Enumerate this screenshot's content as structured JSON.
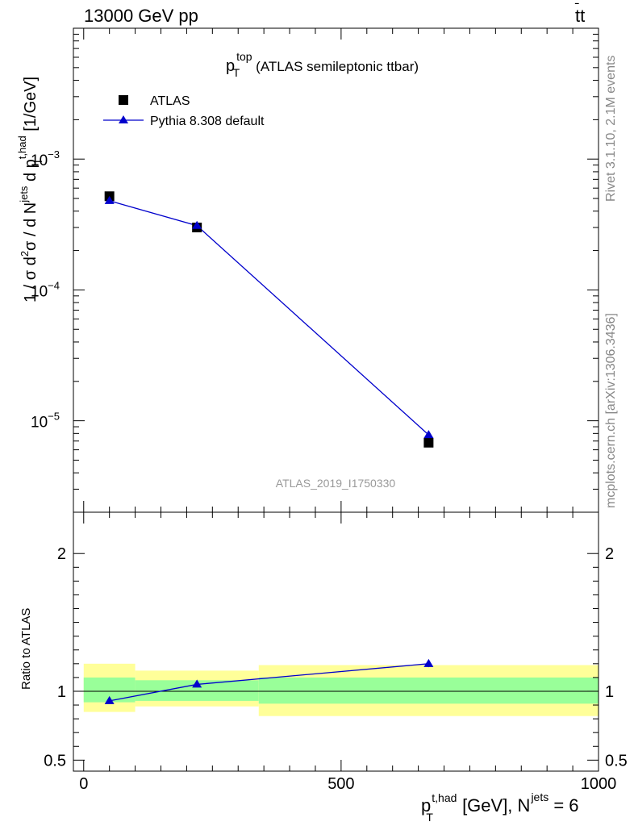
{
  "header": {
    "collision": "13000 GeV pp",
    "process_main": "tt",
    "process_bar": "̄"
  },
  "side_labels": {
    "rivet": "Rivet 3.1.10,  2.1M events",
    "mcplots": "mcplots.cern.ch [arXiv:1306.3436]"
  },
  "watermark": "ATLAS_2019_I1750330",
  "colors": {
    "atlas": "#000000",
    "pythia": "#0000cc",
    "band_stat": "#99ff99",
    "band_total": "#ffff99"
  },
  "chart_data": [
    {
      "type": "scatter",
      "panel": "main",
      "title": {
        "sym": "p",
        "sub": "T",
        "sup": "top",
        "text": "(ATLAS semileptonic ttbar)"
      },
      "ylabel": {
        "a": "1 / σ d",
        "a_sup": "2",
        "b": "σ /  d N",
        "b_sup": "jets",
        "c": " d p",
        "c_sup": "t,had",
        "c_sub": "T",
        "d": " [1/GeV]"
      },
      "yscale": "log",
      "ylim": [
        2e-06,
        0.01
      ],
      "xlim": [
        -20,
        1000
      ],
      "yticks": [
        {
          "value": 0.001,
          "base": "10",
          "exp": "−3"
        },
        {
          "value": 0.0001,
          "base": "10",
          "exp": "−4"
        },
        {
          "value": 1e-05,
          "base": "10",
          "exp": "−5"
        }
      ],
      "legend_position": "top-left",
      "series": [
        {
          "name": "ATLAS",
          "marker": "square",
          "x": [
            50,
            220,
            670
          ],
          "y": [
            0.00052,
            0.0003,
            6.8e-06
          ]
        },
        {
          "name": "Pythia 8.308 default",
          "marker": "triangle",
          "x": [
            50,
            220,
            670
          ],
          "y": [
            0.00048,
            0.00031,
            7.8e-06
          ]
        }
      ]
    },
    {
      "type": "line",
      "panel": "ratio",
      "ylabel": "Ratio to ATLAS",
      "ylim": [
        0.42,
        2.3
      ],
      "xlim": [
        -20,
        1000
      ],
      "yticks": [
        {
          "value": 2,
          "label": "2"
        },
        {
          "value": 1,
          "label": "1"
        },
        {
          "value": 0.5,
          "label": "0.5"
        }
      ],
      "xticks": [
        {
          "value": 0,
          "label": "0"
        },
        {
          "value": 500,
          "label": "500"
        },
        {
          "value": 1000,
          "label": "1000"
        }
      ],
      "xlabel": {
        "sym": "p",
        "sup": "t,had",
        "sub": "T",
        "text": " [GeV], N",
        "sup2": "jets",
        "tail": " = 6"
      },
      "bands": [
        {
          "x0": 0,
          "x1": 100,
          "stat": [
            0.92,
            1.1
          ],
          "total": [
            0.85,
            1.2
          ]
        },
        {
          "x0": 100,
          "x1": 340,
          "stat": [
            0.93,
            1.08
          ],
          "total": [
            0.89,
            1.15
          ]
        },
        {
          "x0": 340,
          "x1": 1000,
          "stat": [
            0.91,
            1.1
          ],
          "total": [
            0.82,
            1.19
          ]
        }
      ],
      "series": [
        {
          "name": "Pythia 8.308 default",
          "x": [
            50,
            220,
            670
          ],
          "y": [
            0.93,
            1.05,
            1.2
          ],
          "err": [
            0,
            0,
            0.025
          ]
        }
      ]
    }
  ]
}
